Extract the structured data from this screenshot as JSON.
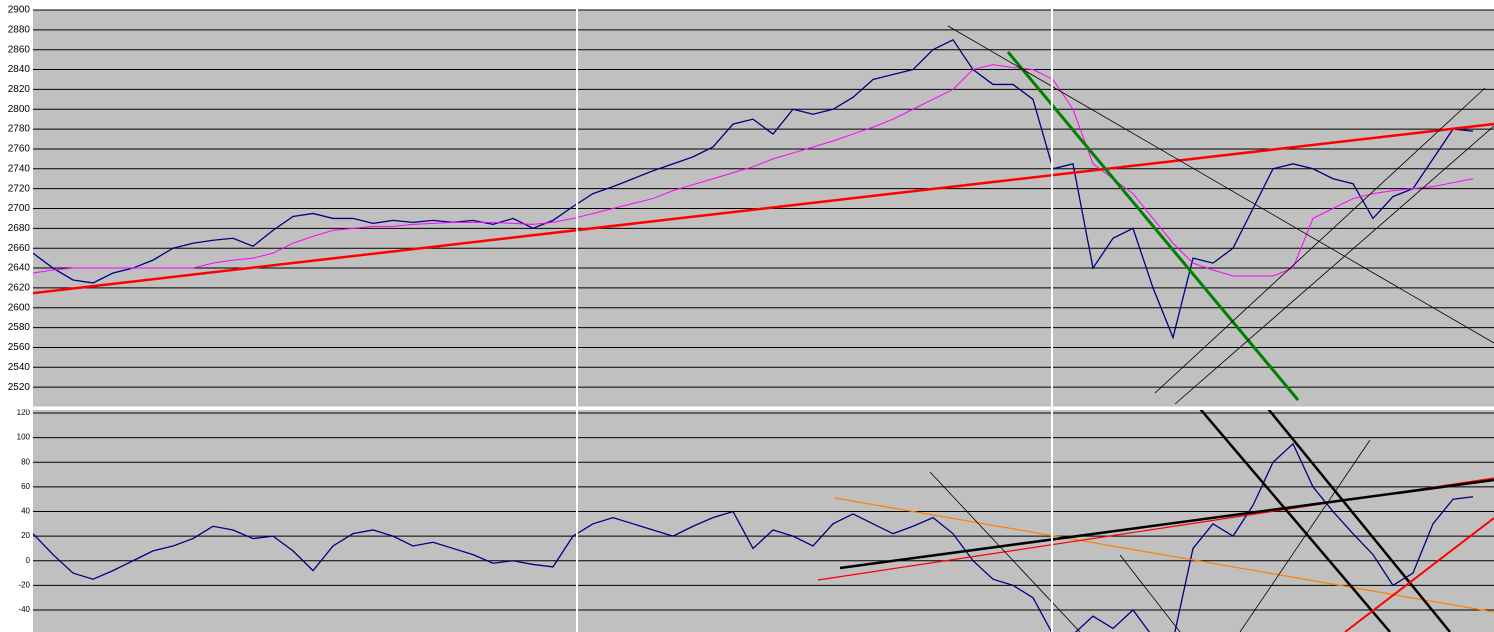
{
  "chart_data": [
    {
      "type": "line",
      "categories": [
        null,
        null,
        null,
        null,
        null,
        null,
        null,
        null,
        null,
        null,
        null,
        null,
        null,
        null,
        null,
        null,
        null,
        null,
        null,
        null,
        null,
        null,
        null,
        null,
        null,
        null,
        null,
        null,
        null,
        null,
        null,
        null,
        null,
        null,
        null,
        null,
        null,
        null,
        null,
        null,
        null,
        null,
        null,
        null,
        null,
        null,
        null,
        null,
        null,
        null,
        null,
        null,
        null,
        null,
        null,
        null,
        null,
        null,
        null,
        null,
        null,
        null,
        null,
        null,
        null,
        null,
        null,
        null,
        null,
        null,
        null,
        null,
        null
      ],
      "series": [
        {
          "color": "#000080",
          "values": [
            2655,
            2640,
            2628,
            2625,
            2635,
            2640,
            2648,
            2660,
            2665,
            2668,
            2670,
            2662,
            2678,
            2692,
            2695,
            2690,
            2690,
            2685,
            2688,
            2686,
            2688,
            2686,
            2688,
            2684,
            2690,
            2680,
            2688,
            2702,
            2715,
            2722,
            2730,
            2738,
            2745,
            2752,
            2762,
            2785,
            2790,
            2775,
            2800,
            2795,
            2800,
            2812,
            2830,
            2835,
            2840,
            2860,
            2870,
            2840,
            2825,
            2825,
            2810,
            2740,
            2745,
            2640,
            2670,
            2680,
            2620,
            2570,
            2650,
            2645,
            2660,
            2700,
            2740,
            2745,
            2740,
            2730,
            2725,
            2690,
            2712,
            2720,
            2750,
            2780,
            2778
          ]
        },
        {
          "color": "#ff00ff",
          "values": [
            2635,
            2638,
            2640,
            2640,
            2640,
            2640,
            2640,
            2640,
            2640,
            2645,
            2648,
            2650,
            2655,
            2665,
            2672,
            2678,
            2680,
            2682,
            2682,
            2684,
            2685,
            2686,
            2686,
            2686,
            2685,
            2684,
            2686,
            2690,
            2695,
            2700,
            2705,
            2710,
            2718,
            2724,
            2730,
            2736,
            2742,
            2750,
            2756,
            2762,
            2768,
            2775,
            2782,
            2790,
            2800,
            2810,
            2820,
            2840,
            2845,
            2842,
            2840,
            2830,
            2800,
            2745,
            2730,
            2715,
            2690,
            2665,
            2645,
            2638,
            2632,
            2632,
            2632,
            2640,
            2690,
            2700,
            2710,
            2715,
            2718,
            2720,
            2722,
            2726,
            2730
          ]
        }
      ],
      "ylim": [
        2500,
        2900
      ],
      "yticks": [
        2520,
        2540,
        2560,
        2580,
        2600,
        2620,
        2640,
        2660,
        2680,
        2700,
        2720,
        2740,
        2760,
        2780,
        2800,
        2820,
        2840,
        2860,
        2880,
        2900
      ],
      "grid": true
    },
    {
      "type": "line",
      "categories": [
        null,
        null,
        null,
        null,
        null,
        null,
        null,
        null,
        null,
        null,
        null,
        null,
        null,
        null,
        null,
        null,
        null,
        null,
        null,
        null,
        null,
        null,
        null,
        null,
        null,
        null,
        null,
        null,
        null,
        null,
        null,
        null,
        null,
        null,
        null,
        null,
        null,
        null,
        null,
        null,
        null,
        null,
        null,
        null,
        null,
        null,
        null,
        null,
        null,
        null,
        null,
        null,
        null,
        null,
        null,
        null,
        null,
        null,
        null,
        null,
        null,
        null,
        null,
        null,
        null,
        null,
        null,
        null,
        null,
        null,
        null,
        null,
        null
      ],
      "series": [
        {
          "color": "#000080",
          "values": [
            22,
            5,
            -10,
            -15,
            -8,
            0,
            8,
            12,
            18,
            28,
            25,
            18,
            20,
            8,
            -8,
            12,
            22,
            25,
            20,
            12,
            15,
            10,
            5,
            -2,
            0,
            -3,
            -5,
            20,
            30,
            35,
            30,
            25,
            20,
            28,
            35,
            40,
            10,
            25,
            20,
            12,
            30,
            38,
            30,
            22,
            28,
            35,
            22,
            0,
            -15,
            -20,
            -30,
            -60,
            -60,
            -45,
            -55,
            -40,
            -62,
            -65,
            10,
            30,
            20,
            45,
            80,
            95,
            60,
            40,
            22,
            5,
            -20,
            -10,
            30,
            50,
            52
          ]
        }
      ],
      "ylim": [
        -56,
        120
      ],
      "yticks": [
        -40,
        -20,
        0,
        20,
        40,
        60,
        80,
        100,
        120
      ],
      "grid": true
    }
  ]
}
